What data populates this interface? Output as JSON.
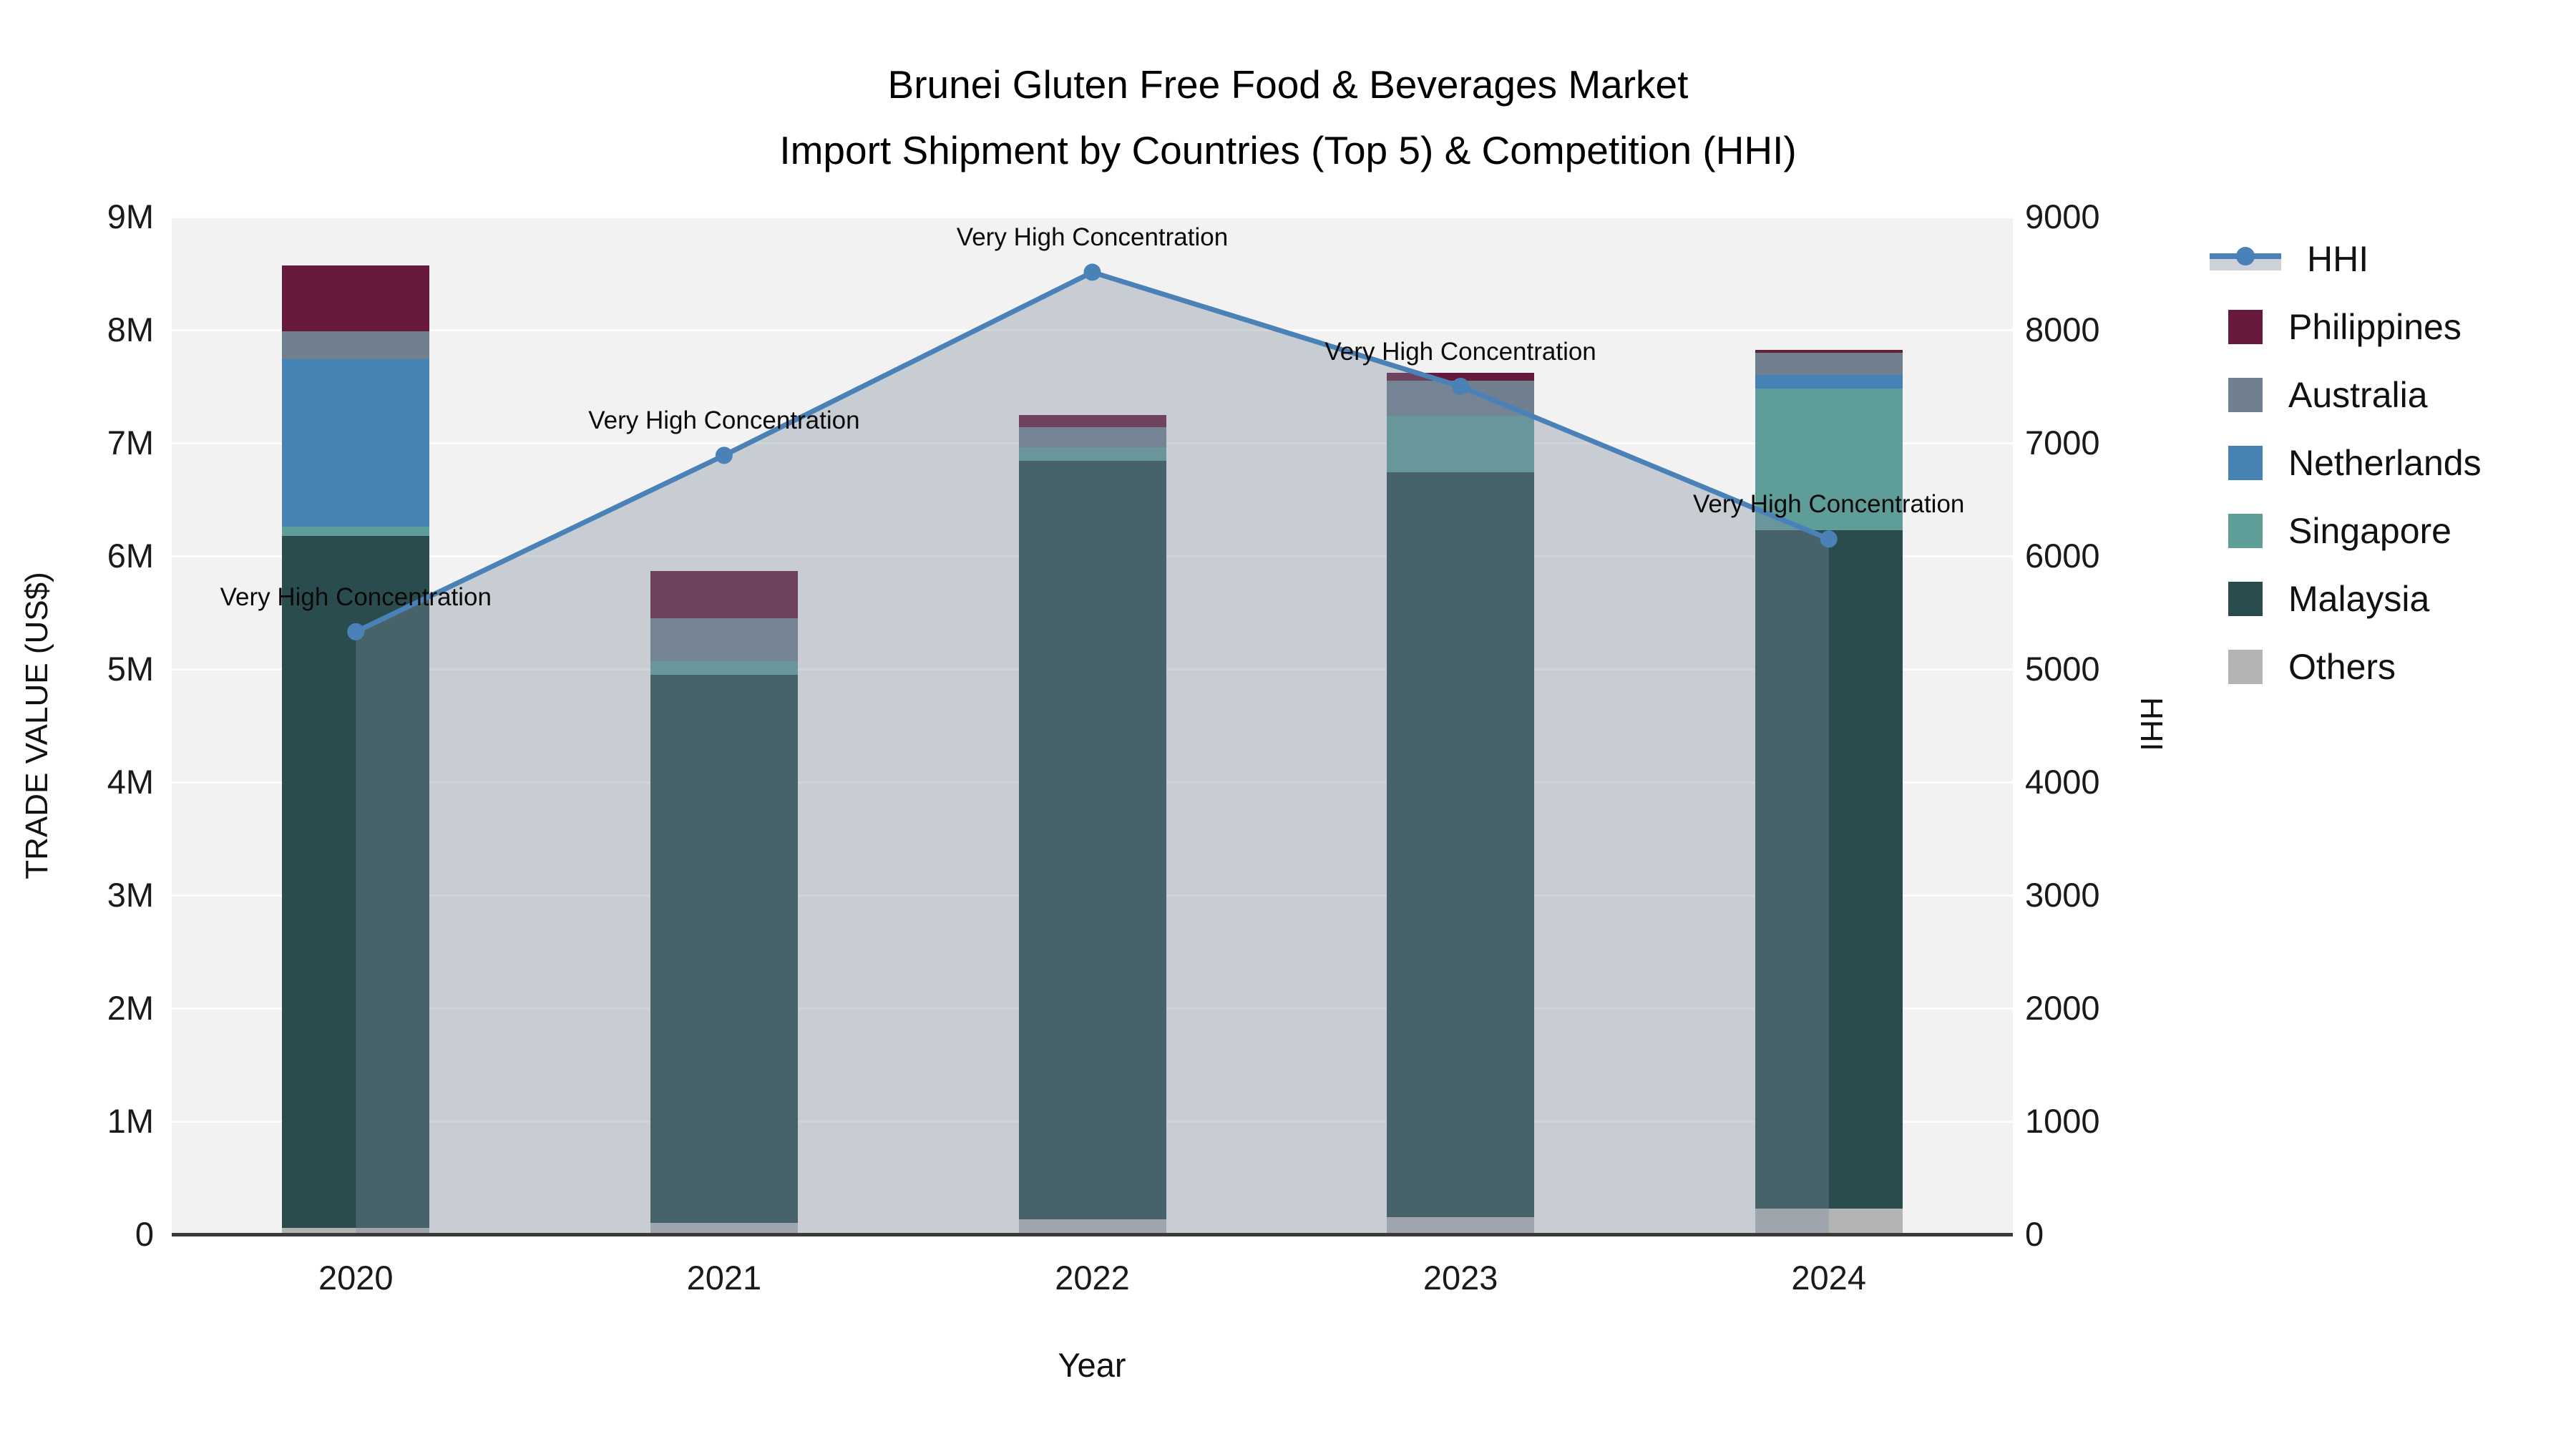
{
  "chart_data": {
    "type": "bar",
    "subtype": "stacked-bar-with-line",
    "title_line1": "Brunei Gluten Free Food & Beverages Market",
    "title_line2": "Import Shipment by Countries (Top 5) & Competition (HHI)",
    "xlabel": "Year",
    "ylabel": "TRADE VALUE (US$)",
    "y2label": "HHI",
    "categories": [
      "2020",
      "2021",
      "2022",
      "2023",
      "2024"
    ],
    "value_unit": "million US$",
    "stack_bottom_to_top": [
      "Others",
      "Malaysia",
      "Singapore",
      "Netherlands",
      "Australia",
      "Philippines"
    ],
    "series": [
      {
        "name": "Philippines",
        "color": "#681a3c",
        "values_usd_m": [
          0.58,
          0.42,
          0.11,
          0.07,
          0.02
        ]
      },
      {
        "name": "Australia",
        "color": "#70808f",
        "values_usd_m": [
          0.25,
          0.38,
          0.18,
          0.31,
          0.2
        ]
      },
      {
        "name": "Netherlands",
        "color": "#4682b4",
        "values_usd_m": [
          1.48,
          0.0,
          0.0,
          0.0,
          0.12
        ]
      },
      {
        "name": "Singapore",
        "color": "#5f9d99",
        "values_usd_m": [
          0.08,
          0.12,
          0.12,
          0.5,
          1.25
        ]
      },
      {
        "name": "Malaysia",
        "color": "#2b4c4e",
        "values_usd_m": [
          6.12,
          4.85,
          6.71,
          6.59,
          6.0
        ]
      },
      {
        "name": "Others",
        "color": "#b2b5b4",
        "values_usd_m": [
          0.06,
          0.1,
          0.13,
          0.15,
          0.23
        ]
      }
    ],
    "bar_totals_usd_m": [
      8.57,
      5.87,
      7.25,
      7.62,
      7.82
    ],
    "line_series": {
      "name": "HHI",
      "color": "#4a82b8",
      "fill_color": "rgba(125,138,158,0.36)",
      "values": [
        5330,
        6890,
        8510,
        7500,
        6150
      ]
    },
    "annotations": [
      "Very High Concentration",
      "Very High Concentration",
      "Very High Concentration",
      "Very High Concentration",
      "Very High Concentration"
    ],
    "y_ticks": [
      "0",
      "1M",
      "2M",
      "3M",
      "4M",
      "5M",
      "6M",
      "7M",
      "8M",
      "9M"
    ],
    "y2_ticks": [
      "0",
      "1000",
      "2000",
      "3000",
      "4000",
      "5000",
      "6000",
      "7000",
      "8000",
      "9000"
    ],
    "ylim_usd": [
      0,
      9000000
    ],
    "y2lim": [
      0,
      9000
    ],
    "grid": true,
    "legend_position": "top-right",
    "legend_order": [
      "HHI",
      "Philippines",
      "Australia",
      "Netherlands",
      "Singapore",
      "Malaysia",
      "Others"
    ]
  }
}
